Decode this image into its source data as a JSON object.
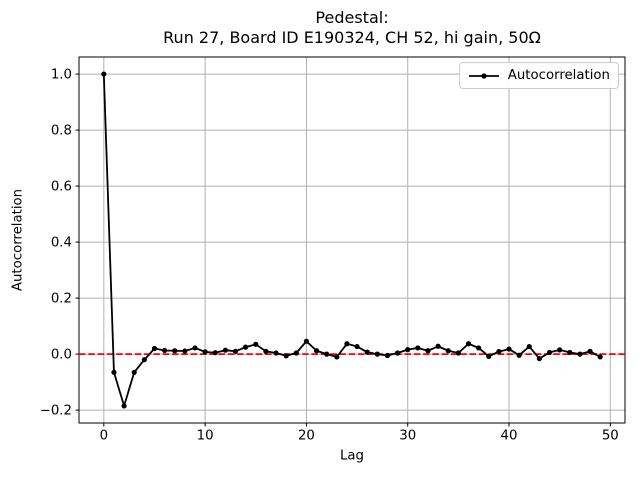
{
  "title": {
    "line1": "Pedestal:",
    "line2": "Run 27, Board ID E190324, CH 52, hi gain, 50Ω"
  },
  "legend": {
    "position": "upper right",
    "entries": [
      "Autocorrelation"
    ]
  },
  "colors": {
    "series_line": "#000000",
    "zero_line": "#ff0000",
    "grid": "#b0b0b0",
    "frame": "#000000",
    "background": "#ffffff",
    "legend_border": "#cccccc"
  },
  "chart_data": {
    "type": "line",
    "title": "Pedestal:\nRun 27, Board ID E190324, CH 52, hi gain, 50Ω",
    "xlabel": "Lag",
    "ylabel": "Autocorrelation",
    "xlim": [
      -2.45,
      51.45
    ],
    "ylim": [
      -0.246,
      1.061
    ],
    "xticks": [
      0,
      10,
      20,
      30,
      40,
      50
    ],
    "yticks": [
      -0.2,
      0.0,
      0.2,
      0.4,
      0.6,
      0.8,
      1.0
    ],
    "grid": true,
    "legend_position": "upper right",
    "zero_line": {
      "y": 0.0,
      "color": "#ff0000",
      "style": "dashed"
    },
    "series": [
      {
        "name": "Autocorrelation",
        "color": "#000000",
        "marker": "dot",
        "x": [
          0,
          1,
          2,
          3,
          4,
          5,
          6,
          7,
          8,
          9,
          10,
          11,
          12,
          13,
          14,
          15,
          16,
          17,
          18,
          19,
          20,
          21,
          22,
          23,
          24,
          25,
          26,
          27,
          28,
          29,
          30,
          31,
          32,
          33,
          34,
          35,
          36,
          37,
          38,
          39,
          40,
          41,
          42,
          43,
          44,
          45,
          46,
          47,
          48,
          49
        ],
        "y": [
          1.0,
          -0.065,
          -0.185,
          -0.065,
          -0.02,
          0.02,
          0.013,
          0.012,
          0.011,
          0.022,
          0.008,
          0.005,
          0.014,
          0.01,
          0.025,
          0.035,
          0.01,
          0.004,
          -0.006,
          0.004,
          0.046,
          0.012,
          0.0,
          -0.01,
          0.037,
          0.027,
          0.007,
          0.0,
          -0.005,
          0.004,
          0.016,
          0.022,
          0.012,
          0.028,
          0.012,
          0.004,
          0.037,
          0.022,
          -0.008,
          0.009,
          0.018,
          -0.004,
          0.027,
          -0.016,
          0.006,
          0.015,
          0.006,
          0.0,
          0.01,
          -0.01
        ]
      }
    ]
  }
}
